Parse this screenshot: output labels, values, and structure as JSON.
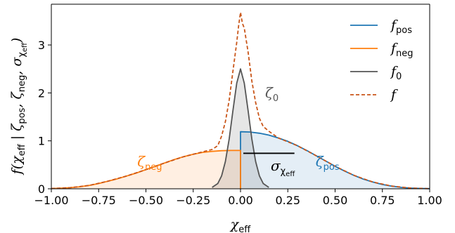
{
  "chart_data": {
    "type": "line",
    "xlabel": {
      "main": "χ",
      "sub": "eff"
    },
    "ylabel": {
      "f": "f(χ",
      "s1": "eff",
      "bar": " | ζ",
      "s2": "pos",
      "sep1": ", ζ",
      "s3": "neg",
      "sep2": ", σ",
      "s4": "χ",
      "s5": "eff",
      "end": ")"
    },
    "xlim": [
      -1.0,
      1.0
    ],
    "ylim": [
      0,
      3.85
    ],
    "xticks": [
      -1.0,
      -0.75,
      -0.5,
      -0.25,
      0.0,
      0.25,
      0.5,
      0.75,
      1.0
    ],
    "xtick_labels": [
      "−1.00",
      "−0.75",
      "−0.50",
      "−0.25",
      "0.00",
      "0.25",
      "0.50",
      "0.75",
      "1.00"
    ],
    "yticks": [
      0,
      1,
      2,
      3
    ],
    "ytick_labels": [
      "0",
      "1",
      "2",
      "3"
    ],
    "grid": false,
    "legend_position": "top-right",
    "colors": {
      "pos": "#1f77b4",
      "neg": "#ff7f0e",
      "zero": "#555555",
      "total": "#c9561a"
    },
    "series": [
      {
        "name_main": "f",
        "name_sub": "pos",
        "key": "pos",
        "x": [
          0.0,
          0.0,
          0.05,
          0.1,
          0.15,
          0.2,
          0.25,
          0.3,
          0.35,
          0.4,
          0.45,
          0.5,
          0.55,
          0.6,
          0.65,
          0.7,
          0.75,
          0.8,
          0.85,
          0.9,
          0.95,
          1.0
        ],
        "y": [
          0.0,
          1.19,
          1.185,
          1.16,
          1.12,
          1.06,
          0.99,
          0.9,
          0.8,
          0.69,
          0.58,
          0.47,
          0.37,
          0.28,
          0.2,
          0.14,
          0.09,
          0.055,
          0.03,
          0.015,
          0.007,
          0.003
        ]
      },
      {
        "name_main": "f",
        "name_sub": "neg",
        "key": "neg",
        "x": [
          -1.0,
          -0.95,
          -0.9,
          -0.85,
          -0.8,
          -0.75,
          -0.7,
          -0.65,
          -0.6,
          -0.55,
          -0.5,
          -0.45,
          -0.4,
          -0.35,
          -0.3,
          -0.25,
          -0.2,
          -0.15,
          -0.1,
          -0.05,
          0.0,
          0.0
        ],
        "y": [
          0.006,
          0.012,
          0.024,
          0.042,
          0.07,
          0.11,
          0.16,
          0.21,
          0.27,
          0.33,
          0.4,
          0.47,
          0.54,
          0.61,
          0.67,
          0.72,
          0.76,
          0.78,
          0.795,
          0.8,
          0.8,
          0.0
        ]
      },
      {
        "name_main": "f",
        "name_sub": "0",
        "key": "zero",
        "x": [
          -0.15,
          -0.12,
          -0.1,
          -0.08,
          -0.06,
          -0.04,
          -0.02,
          0.0,
          0.02,
          0.04,
          0.06,
          0.08,
          0.1,
          0.12,
          0.15
        ],
        "y": [
          0.03,
          0.11,
          0.27,
          0.57,
          1.04,
          1.63,
          2.2,
          2.5,
          2.2,
          1.63,
          1.04,
          0.57,
          0.27,
          0.11,
          0.03
        ]
      },
      {
        "name_main": "f",
        "name_sub": "",
        "key": "total",
        "dashed": true,
        "x": [
          -1.0,
          -0.9,
          -0.8,
          -0.7,
          -0.6,
          -0.5,
          -0.4,
          -0.3,
          -0.25,
          -0.2,
          -0.15,
          -0.12,
          -0.1,
          -0.08,
          -0.06,
          -0.04,
          -0.02,
          -0.01,
          0.0,
          0.01,
          0.02,
          0.04,
          0.06,
          0.08,
          0.1,
          0.12,
          0.15,
          0.2,
          0.3,
          0.4,
          0.5,
          0.6,
          0.7,
          0.8,
          0.9,
          1.0
        ],
        "y": [
          0.006,
          0.024,
          0.07,
          0.16,
          0.27,
          0.4,
          0.54,
          0.67,
          0.72,
          0.77,
          0.82,
          0.9,
          1.1,
          1.4,
          1.85,
          2.45,
          3.05,
          3.4,
          3.68,
          3.45,
          3.35,
          2.85,
          2.25,
          1.8,
          1.47,
          1.3,
          1.2,
          1.06,
          0.9,
          0.69,
          0.47,
          0.28,
          0.14,
          0.055,
          0.015,
          0.003
        ]
      }
    ],
    "annotations": {
      "zeta_neg": {
        "main": "ζ",
        "sub": "neg",
        "x": -0.48,
        "y": 0.47
      },
      "zeta_pos": {
        "main": "ζ",
        "sub": "pos",
        "x": 0.46,
        "y": 0.47
      },
      "zeta_zero": {
        "main": "ζ",
        "sub": "0",
        "x": 0.13,
        "y": 1.9
      },
      "sigma": {
        "main": "σ",
        "sub1": "χ",
        "sub2": "eff",
        "x": 0.16,
        "y": 0.38,
        "bar_x": [
          0.015,
          0.285
        ],
        "bar_y": 0.74
      }
    }
  }
}
